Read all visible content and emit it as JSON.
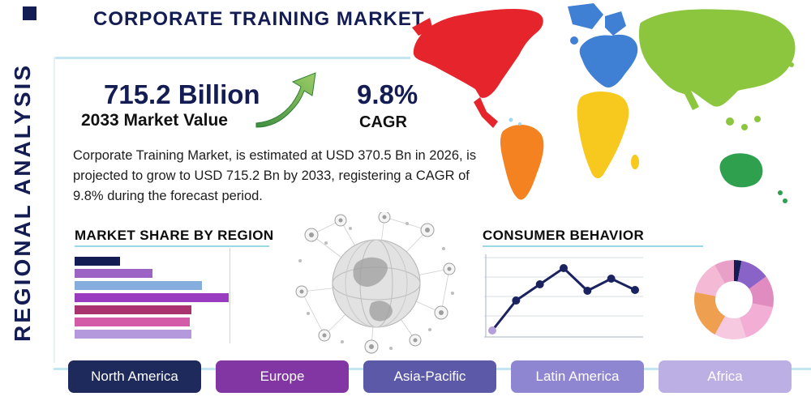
{
  "header": {
    "title": "CORPORATE TRAINING MARKET",
    "side_label": "REGIONAL ANALYSIS"
  },
  "stats": {
    "market_value": "715.2 Billion",
    "market_value_label": "2033 Market Value",
    "cagr_value": "9.8%",
    "cagr_label": "CAGR",
    "description": "Corporate Training Market, is estimated at USD 370.5 Bn in 2026, is projected to grow to USD 715.2 Bn by 2033, registering a CAGR of 9.8% during the forecast period."
  },
  "sections": {
    "market_share_title": "MARKET SHARE BY REGION",
    "consumer_behavior_title": "CONSUMER BEHAVIOR"
  },
  "regions": [
    {
      "label": "North America",
      "color": "#1e2a5c"
    },
    {
      "label": "Europe",
      "color": "#8136a4"
    },
    {
      "label": "Asia-Pacific",
      "color": "#5c5aa8"
    },
    {
      "label": "Latin America",
      "color": "#8f86d2"
    },
    {
      "label": "Africa",
      "color": "#bcafe4"
    }
  ],
  "palette": {
    "accent_navy": "#141c54",
    "underline_blue": "#9ed7ea",
    "arrow_green": "#4caf50",
    "map_north_america": "#e5242b",
    "map_south_america": "#f58220",
    "map_europe": "#3f7fd4",
    "map_africa": "#f7c81e",
    "map_asia": "#8cc63f",
    "map_oceania": "#2fa04e"
  },
  "chart_data": [
    {
      "type": "bar",
      "title": "MARKET SHARE BY REGION",
      "orientation": "horizontal",
      "categories": [
        "",
        "",
        "",
        "",
        "",
        "",
        ""
      ],
      "values": [
        29,
        50,
        82,
        99,
        75,
        74,
        75
      ],
      "xlim": [
        0,
        100
      ],
      "unit": "relative (bars unlabeled in source)",
      "colors": [
        "#141c54",
        "#9c63c4",
        "#85aede",
        "#9a3cc0",
        "#a8336e",
        "#d45ba8",
        "#b49add"
      ],
      "grid": "single right gridline"
    },
    {
      "type": "line",
      "title": "CONSUMER BEHAVIOR",
      "x": [
        1,
        2,
        3,
        4,
        5,
        6,
        7
      ],
      "values": [
        8,
        45,
        65,
        85,
        57,
        72,
        58
      ],
      "ylim": [
        0,
        100
      ],
      "unit": "relative (axes unlabeled in source)",
      "line_color": "#1a2360",
      "marker_color": "#1a2360",
      "first_marker_color": "#b3a0dc",
      "grid": "horizontal gridlines"
    },
    {
      "type": "pie",
      "title": "",
      "style": "donut",
      "slices": [
        {
          "color": "#141c54",
          "pct": 3
        },
        {
          "color": "#8a63c8",
          "pct": 12
        },
        {
          "color": "#e08cc0",
          "pct": 13
        },
        {
          "color": "#f2aed4",
          "pct": 17
        },
        {
          "color": "#f7c9e0",
          "pct": 13
        },
        {
          "color": "#ef9f50",
          "pct": 20
        },
        {
          "color": "#f4b9d4",
          "pct": 14
        },
        {
          "color": "#e8a0c8",
          "pct": 8
        }
      ],
      "unit": "relative (slices unlabeled in source)"
    }
  ]
}
